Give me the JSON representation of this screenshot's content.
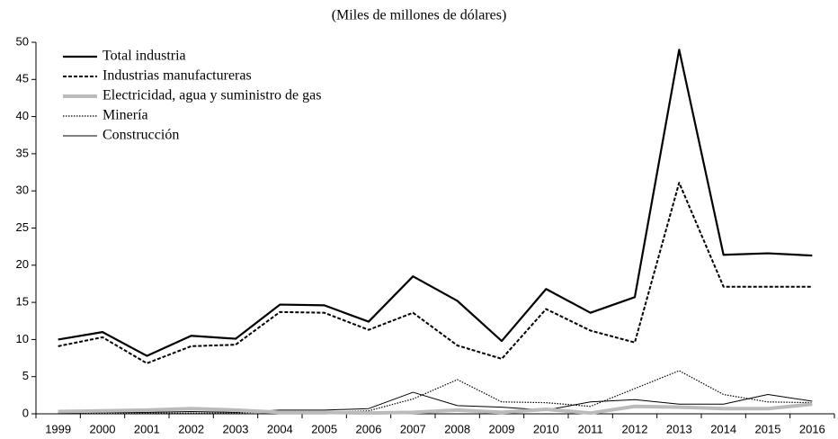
{
  "chart_data": {
    "type": "line",
    "subtitle": "(Miles de millones de dólares)",
    "categories": [
      "1999",
      "2000",
      "2001",
      "2002",
      "2003",
      "2004",
      "2005",
      "2006",
      "2007",
      "2008",
      "2009",
      "2010",
      "2011",
      "2012",
      "2013",
      "2014",
      "2015",
      "2016"
    ],
    "series": [
      {
        "name": "Total industria",
        "color": "#000000",
        "line_width": 2.2,
        "line_style": "solid",
        "values": [
          10,
          11,
          7.8,
          10.5,
          10.1,
          14.7,
          14.6,
          12.4,
          18.5,
          15.2,
          9.8,
          16.8,
          13.6,
          15.7,
          49,
          21.4,
          21.6,
          21.3
        ]
      },
      {
        "name": "Industrias manufactureras",
        "color": "#000000",
        "line_width": 2,
        "line_style": "dashed",
        "values": [
          9.1,
          10.3,
          6.8,
          9.1,
          9.3,
          13.7,
          13.6,
          11.3,
          13.6,
          9.2,
          7.4,
          14.1,
          11.2,
          9.6,
          31.1,
          17.1,
          17.1,
          17.1
        ]
      },
      {
        "name": "Electricidad, agua y suministro de gas",
        "color": "#bbbbbb",
        "line_width": 4,
        "line_style": "solid",
        "values": [
          0.3,
          0.4,
          0.5,
          0.7,
          0.5,
          0.2,
          0.2,
          0.1,
          0.2,
          0.5,
          0.2,
          0.6,
          0.1,
          1.0,
          0.9,
          0.7,
          0.7,
          1.3
        ]
      },
      {
        "name": "Minería",
        "color": "#000000",
        "line_width": 1.2,
        "line_style": "dotted",
        "values": [
          0.1,
          0.1,
          0.1,
          0.1,
          0.1,
          0.3,
          0.2,
          0.4,
          2.0,
          4.6,
          1.6,
          1.5,
          1.0,
          3.4,
          5.8,
          2.6,
          1.6,
          1.5
        ]
      },
      {
        "name": "Construcción",
        "color": "#000000",
        "line_width": 1,
        "line_style": "solid",
        "values": [
          0.1,
          0.2,
          0.2,
          0.3,
          0.2,
          0.5,
          0.5,
          0.7,
          2.9,
          1.1,
          0.9,
          0.5,
          1.6,
          1.9,
          1.3,
          1.3,
          2.6,
          1.7
        ]
      }
    ],
    "ylim": [
      0,
      50
    ],
    "yticks": [
      0,
      5,
      10,
      15,
      20,
      25,
      30,
      35,
      40,
      45,
      50
    ],
    "grid": false,
    "legend": "upper left"
  }
}
